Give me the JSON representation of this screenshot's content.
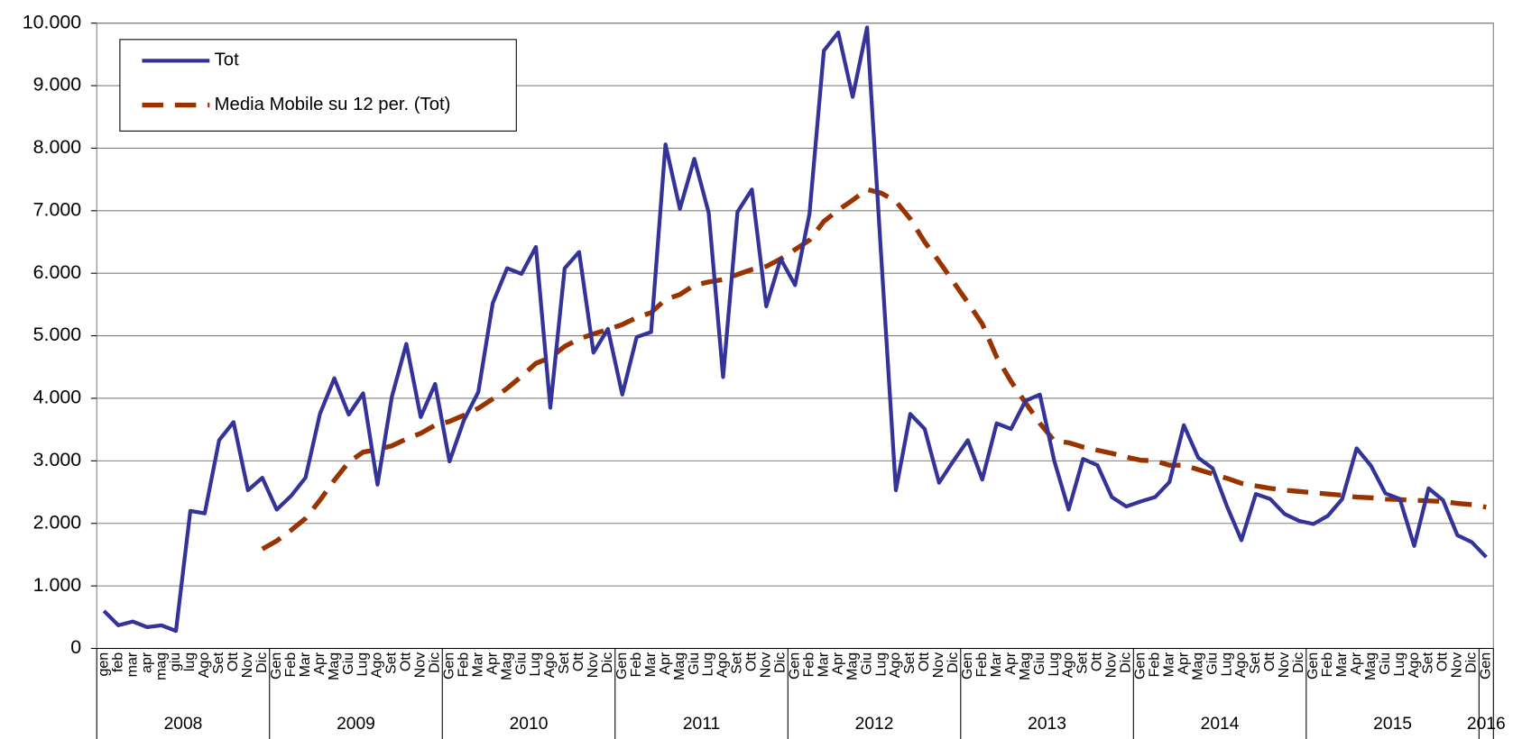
{
  "chart_data": {
    "type": "line",
    "groups": [
      {
        "name": "2008",
        "categories": [
          "gen",
          "feb",
          "mar",
          "apr",
          "mag",
          "giu",
          "lug",
          "Ago",
          "Set",
          "Ott",
          "Nov",
          "Dic"
        ]
      },
      {
        "name": "2009",
        "categories": [
          "Gen",
          "Feb",
          "Mar",
          "Apr",
          "Mag",
          "Giu",
          "Lug",
          "Ago",
          "Set",
          "Ott",
          "Nov",
          "Dic"
        ]
      },
      {
        "name": "2010",
        "categories": [
          "Gen",
          "Feb",
          "Mar",
          "Apr",
          "Mag",
          "Giu",
          "Lug",
          "Ago",
          "Set",
          "Ott",
          "Nov",
          "Dic"
        ]
      },
      {
        "name": "2011",
        "categories": [
          "Gen",
          "Feb",
          "Mar",
          "Apr",
          "Mag",
          "Giu",
          "Lug",
          "Ago",
          "Set",
          "Ott",
          "Nov",
          "Dic"
        ]
      },
      {
        "name": "2012",
        "categories": [
          "Gen",
          "Feb",
          "Mar",
          "Apr",
          "Mag",
          "Giu",
          "Lug",
          "Ago",
          "Set",
          "Ott",
          "Nov",
          "Dic"
        ]
      },
      {
        "name": "2013",
        "categories": [
          "Gen",
          "Feb",
          "Mar",
          "Apr",
          "Mag",
          "Giu",
          "Lug",
          "Ago",
          "Set",
          "Ott",
          "Nov",
          "Dic"
        ]
      },
      {
        "name": "2014",
        "categories": [
          "Gen",
          "Feb",
          "Mar",
          "Apr",
          "Mag",
          "Giu",
          "Lug",
          "Ago",
          "Set",
          "Ott",
          "Nov",
          "Dic"
        ]
      },
      {
        "name": "2015",
        "categories": [
          "Gen",
          "Feb",
          "Mar",
          "Apr",
          "Mag",
          "Giu",
          "Lug",
          "Ago",
          "Set",
          "Ott",
          "Nov",
          "Dic"
        ]
      },
      {
        "name": "2016",
        "categories": [
          "Gen"
        ]
      }
    ],
    "series": [
      {
        "name": "Tot",
        "color": "#333399",
        "dash": false,
        "values": [
          600,
          370,
          430,
          340,
          370,
          280,
          2200,
          2160,
          3330,
          3620,
          2530,
          2730,
          2220,
          2440,
          2730,
          3750,
          4320,
          3740,
          4080,
          2620,
          4030,
          4870,
          3700,
          4230,
          2990,
          3650,
          4100,
          5520,
          6080,
          5990,
          6420,
          3850,
          6080,
          6340,
          4730,
          5110,
          4060,
          4980,
          5060,
          8060,
          7030,
          7830,
          6970,
          4340,
          6980,
          7340,
          5470,
          6230,
          5810,
          6950,
          9560,
          9850,
          8820,
          9930,
          6200,
          2530,
          3750,
          3510,
          2650,
          3000,
          3330,
          2700,
          3600,
          3510,
          3960,
          4060,
          3000,
          2220,
          3030,
          2930,
          2420,
          2270,
          2350,
          2420,
          2660,
          3570,
          3050,
          2880,
          2270,
          1730,
          2470,
          2390,
          2150,
          2040,
          1990,
          2120,
          2390,
          3200,
          2920,
          2480,
          2390,
          1640,
          2560,
          2370,
          1810,
          1700,
          1460
        ]
      },
      {
        "name": "Media Mobile su 12 per. (Tot)",
        "color": "#993300",
        "dash": true,
        "values": [
          null,
          null,
          null,
          null,
          null,
          null,
          null,
          null,
          null,
          null,
          null,
          1590,
          1720,
          1890,
          2080,
          2370,
          2690,
          2980,
          3140,
          3180,
          3240,
          3350,
          3440,
          3570,
          3630,
          3730,
          3840,
          3990,
          4160,
          4350,
          4560,
          4650,
          4830,
          4950,
          5030,
          5100,
          5180,
          5290,
          5370,
          5580,
          5660,
          5810,
          5860,
          5900,
          5980,
          6060,
          6110,
          6230,
          6380,
          6530,
          6830,
          7010,
          7170,
          7340,
          7280,
          7150,
          6870,
          6500,
          6190,
          5860,
          5530,
          5190,
          4660,
          4270,
          3930,
          3600,
          3320,
          3290,
          3220,
          3170,
          3120,
          3060,
          3010,
          3000,
          2930,
          2930,
          2860,
          2790,
          2720,
          2640,
          2600,
          2560,
          2530,
          2510,
          2490,
          2470,
          2450,
          2420,
          2410,
          2390,
          2380,
          2370,
          2360,
          2350,
          2320,
          2300,
          2260
        ]
      }
    ],
    "ylim": [
      0,
      10000
    ],
    "yticks": [
      0,
      {
        "value": 1000,
        "label": "1.000"
      },
      {
        "value": 2000,
        "label": "2.000"
      },
      {
        "value": 3000,
        "label": "3.000"
      },
      {
        "value": 4000,
        "label": "4.000"
      },
      {
        "value": 5000,
        "label": "5.000"
      },
      {
        "value": 6000,
        "label": "6.000"
      },
      {
        "value": 7000,
        "label": "7.000"
      },
      {
        "value": 8000,
        "label": "8.000"
      },
      {
        "value": 9000,
        "label": "9.000"
      },
      {
        "value": 10000,
        "label": "10.000"
      }
    ],
    "grid": true,
    "legend": "upper left",
    "annotation": "\\"
  }
}
